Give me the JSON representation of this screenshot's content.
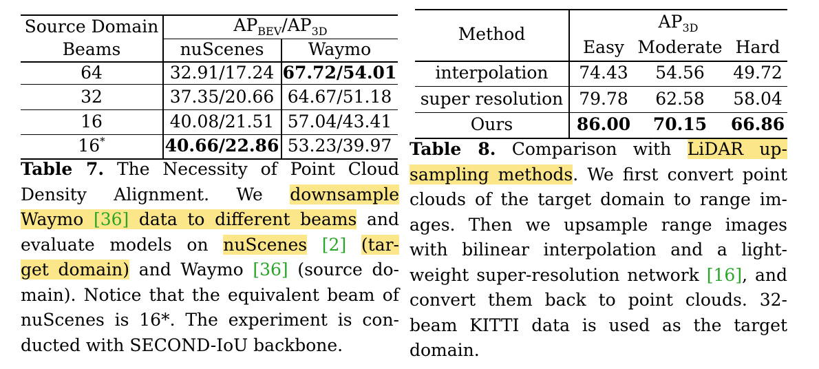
{
  "table7": {
    "header": {
      "col1_line1": "Source Domain",
      "col1_line2": "Beams",
      "group_main": "AP",
      "group_sub1": "BEV",
      "group_sep": "/AP",
      "group_sub2": "3D",
      "nuscenes": "nuScenes",
      "waymo": "Waymo"
    },
    "rows": [
      {
        "beams": "64",
        "nuscenes": "32.91/17.24",
        "waymo": "67.72/54.01"
      },
      {
        "beams": "32",
        "nuscenes": "37.35/20.66",
        "waymo": "64.67/51.18"
      },
      {
        "beams": "16",
        "nuscenes": "40.08/21.51",
        "waymo": "57.04/43.41"
      },
      {
        "beams": "16",
        "beams_sup": "*",
        "nuscenes": "40.66/22.86",
        "waymo": "53.23/39.97"
      }
    ],
    "caption": {
      "label": "Table 7.",
      "l1": " The Necessity of Point Cloud",
      "l2a": "Density Alignment. We ",
      "l2hl": "downsample",
      "l3hl": "Waymo ",
      "l3cite": "[36]",
      "l3hl2": " data to different beams",
      "l3b": " and",
      "l4a": "evaluate models on ",
      "l4hl": "nuScenes",
      "l4b": " ",
      "l4cite": "[2]",
      "l4c": " ",
      "l4hl2": "(tar-",
      "l5hl": "get domain)",
      "l5a": " and Waymo ",
      "l5cite": "[36]",
      "l5b": " (source do-",
      "l6": "main). Notice that the equivalent beam of",
      "l7": "nuScenes is 16*. The experiment is con-",
      "l8": "ducted with SECOND-IoU backbone."
    }
  },
  "table8": {
    "header": {
      "method": "Method",
      "group_main": "AP",
      "group_sub": "3D",
      "easy": "Easy",
      "moderate": "Moderate",
      "hard": "Hard"
    },
    "rows": [
      {
        "method": "interpolation",
        "easy": "74.43",
        "moderate": "54.56",
        "hard": "49.72"
      },
      {
        "method": "super resolution",
        "easy": "79.78",
        "moderate": "62.58",
        "hard": "58.04"
      },
      {
        "method": "Ours",
        "easy": "86.00",
        "moderate": "70.15",
        "hard": "66.86"
      }
    ],
    "caption": {
      "label": "Table 8.",
      "l1a": " Comparison with ",
      "l1hl": "LiDAR up-",
      "l2hl": "sampling methods",
      "l2a": ". We first convert point",
      "l3": "clouds of the target domain to range im-",
      "l4": "ages. Then we upsample range images",
      "l5": "with bilinear interpolation and a light-",
      "l6a": "weight super-resolution network ",
      "l6cite": "[16]",
      "l6b": ", and",
      "l7": "convert them back to point clouds. 32-",
      "l8": "beam KITTI data is used as the target",
      "l9": "domain."
    }
  }
}
